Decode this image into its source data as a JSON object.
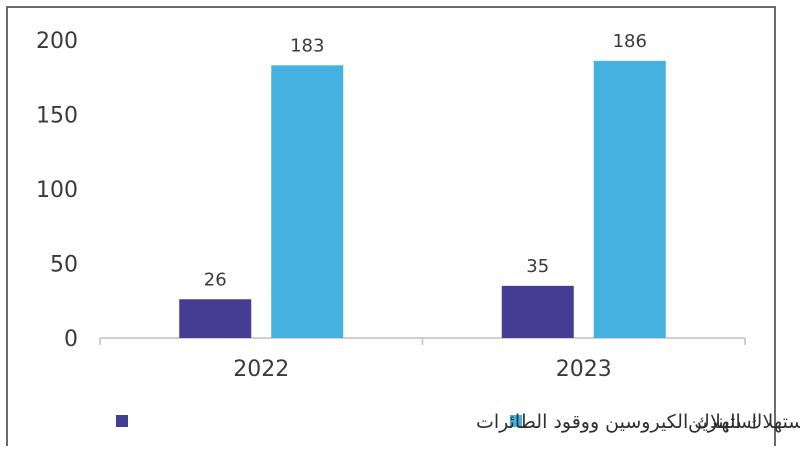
{
  "chart_data": {
    "type": "bar",
    "categories": [
      "2022",
      "2023"
    ],
    "series": [
      {
        "name": "استهلاك الكيروسين ووقود الطائرات",
        "values": [
          26,
          35
        ],
        "color": "#443d93"
      },
      {
        "name": "استهلاك البنزين",
        "values": [
          183,
          186
        ],
        "color": "#45b1e1"
      }
    ],
    "title": "",
    "xlabel": "",
    "ylabel": "",
    "ylim": [
      0,
      200
    ],
    "yticks": [
      0,
      50,
      100,
      150,
      200
    ],
    "grid": false,
    "legend_position": "bottom",
    "data_labels": true
  }
}
